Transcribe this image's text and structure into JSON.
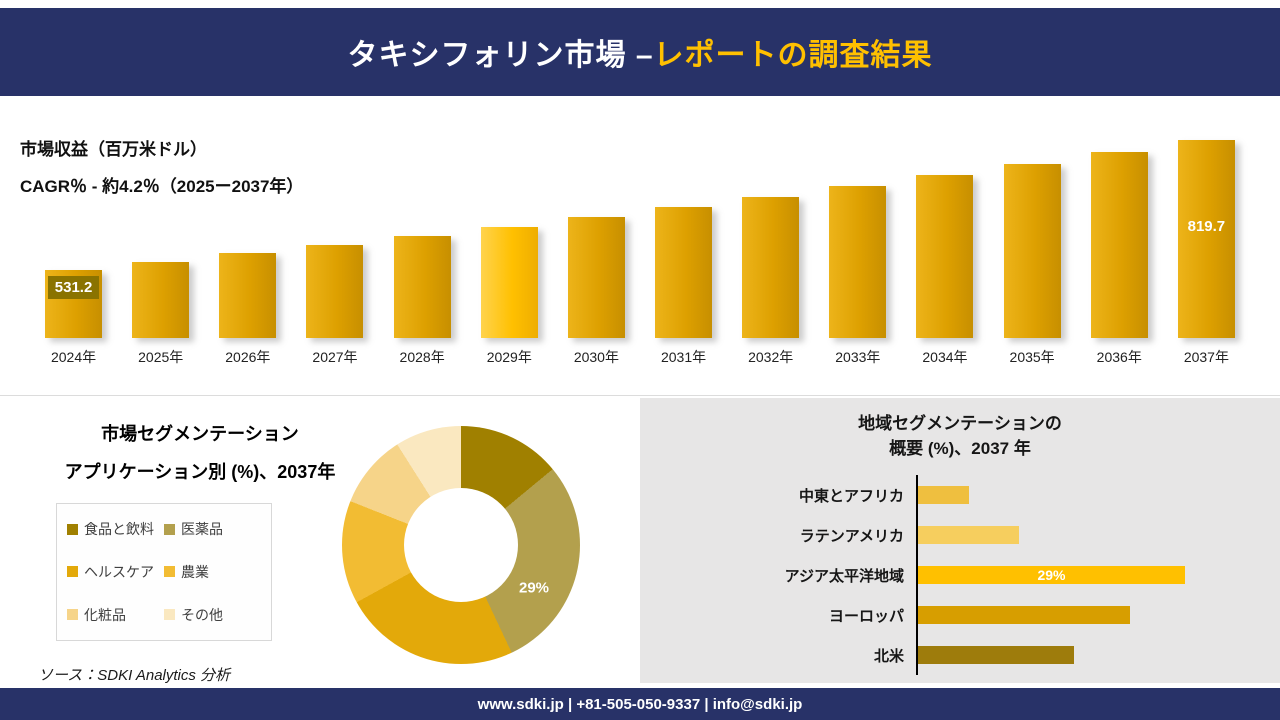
{
  "header": {
    "title_main": "タキシフォリン市場 –",
    "title_accent": "レポートの調査結果"
  },
  "source": {
    "text": "ソース：SDKI Analytics 分析"
  },
  "footer": {
    "text": "www.sdki.jp | +81-505-050-9337 | info@sdki.jp"
  },
  "chart_data": [
    {
      "type": "bar",
      "title": "市場収益（百万米ドル）",
      "subtitle": "CAGR％ - 約4.2％（2025ー2037年）",
      "categories": [
        "2024年",
        "2025年",
        "2026年",
        "2027年",
        "2028年",
        "2029年",
        "2030年",
        "2031年",
        "2032年",
        "2033年",
        "2034年",
        "2035年",
        "2036年",
        "2037年"
      ],
      "values": [
        531.2,
        549.2,
        567.9,
        587.2,
        607.1,
        627.7,
        649.0,
        671.1,
        693.9,
        717.4,
        741.8,
        767.0,
        793.0,
        819.7
      ],
      "highlight_index": 5,
      "bar_color": "#DDA000",
      "highlight_color": "#FFC000",
      "data_labels": [
        {
          "index": 0,
          "text": "531.2",
          "boxed": true
        },
        {
          "index": 13,
          "text": "819.7",
          "boxed": false
        }
      ],
      "axis": "hidden",
      "grid": false
    },
    {
      "type": "pie",
      "donut": true,
      "title": "市場セグメンテーション",
      "subtitle": "アプリケーション別 (%)、2037年",
      "labels": [
        "食品と飲料",
        "医薬品",
        "ヘルスケア",
        "農業",
        "化粧品",
        "その他"
      ],
      "values": [
        14,
        29,
        24,
        14,
        10,
        9
      ],
      "colors": [
        "#A08000",
        "#B3A04D",
        "#E3A90A",
        "#F2BC33",
        "#F6D489",
        "#FAE8C0"
      ],
      "data_label": {
        "text": "29%",
        "series": "医薬品"
      },
      "legend_position": "left"
    },
    {
      "type": "bar",
      "orientation": "horizontal",
      "title_line1": "地域セグメンテーションの",
      "title_line2": "概要 (%)、2037 年",
      "categories": [
        "中東とアフリカ",
        "ラテンアメリカ",
        "アジア太平洋地域",
        "ヨーロッパ",
        "北米"
      ],
      "values": [
        5.5,
        11,
        29,
        23,
        17
      ],
      "colors": [
        "#EFBF3F",
        "#F6CE5E",
        "#FFC000",
        "#D79E00",
        "#9E7C0C"
      ],
      "data_label": {
        "index": 2,
        "text": "29%"
      },
      "axis": "left-line",
      "grid": false
    }
  ]
}
